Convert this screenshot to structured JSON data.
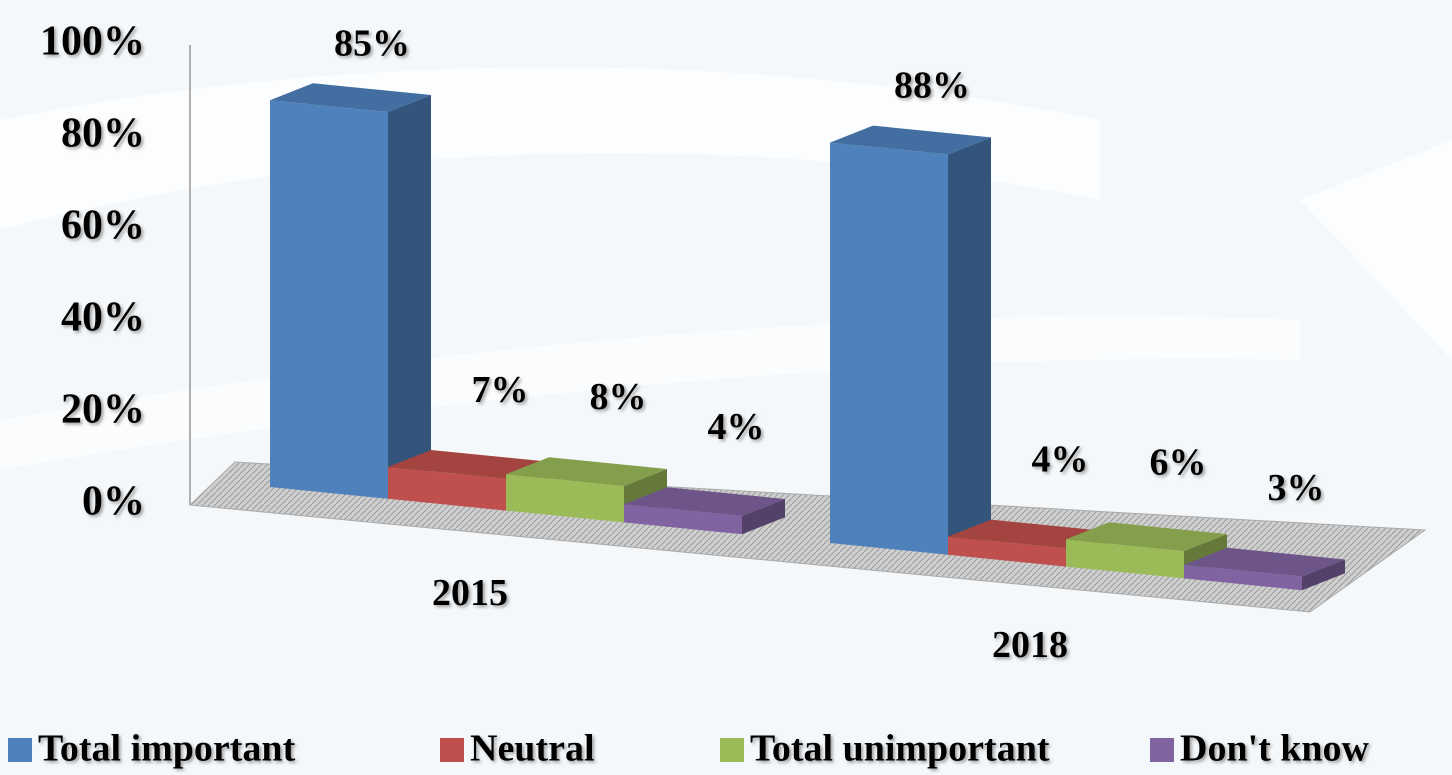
{
  "chart_data": {
    "type": "bar3d",
    "categories": [
      "2015",
      "2018"
    ],
    "series": [
      {
        "name": "Total important",
        "color": "#4f81bd",
        "values": [
          85,
          88
        ],
        "value_labels": [
          "85%",
          "88%"
        ]
      },
      {
        "name": "Neutral",
        "color": "#c0504d",
        "values": [
          7,
          4
        ],
        "value_labels": [
          "7%",
          "4%"
        ]
      },
      {
        "name": "Total unimportant",
        "color": "#9bbb59",
        "values": [
          8,
          6
        ],
        "value_labels": [
          "8%",
          "6%"
        ]
      },
      {
        "name": "Don't know",
        "color": "#8064a2",
        "values": [
          4,
          3
        ],
        "value_labels": [
          "4%",
          "3%"
        ]
      }
    ],
    "ylim": [
      0,
      100
    ],
    "yticks": [
      {
        "value": 0,
        "label": "0%"
      },
      {
        "value": 20,
        "label": "20%"
      },
      {
        "value": 40,
        "label": "40%"
      },
      {
        "value": 60,
        "label": "60%"
      },
      {
        "value": 80,
        "label": "80%"
      },
      {
        "value": 100,
        "label": "100%"
      }
    ],
    "legend": "bottom"
  }
}
